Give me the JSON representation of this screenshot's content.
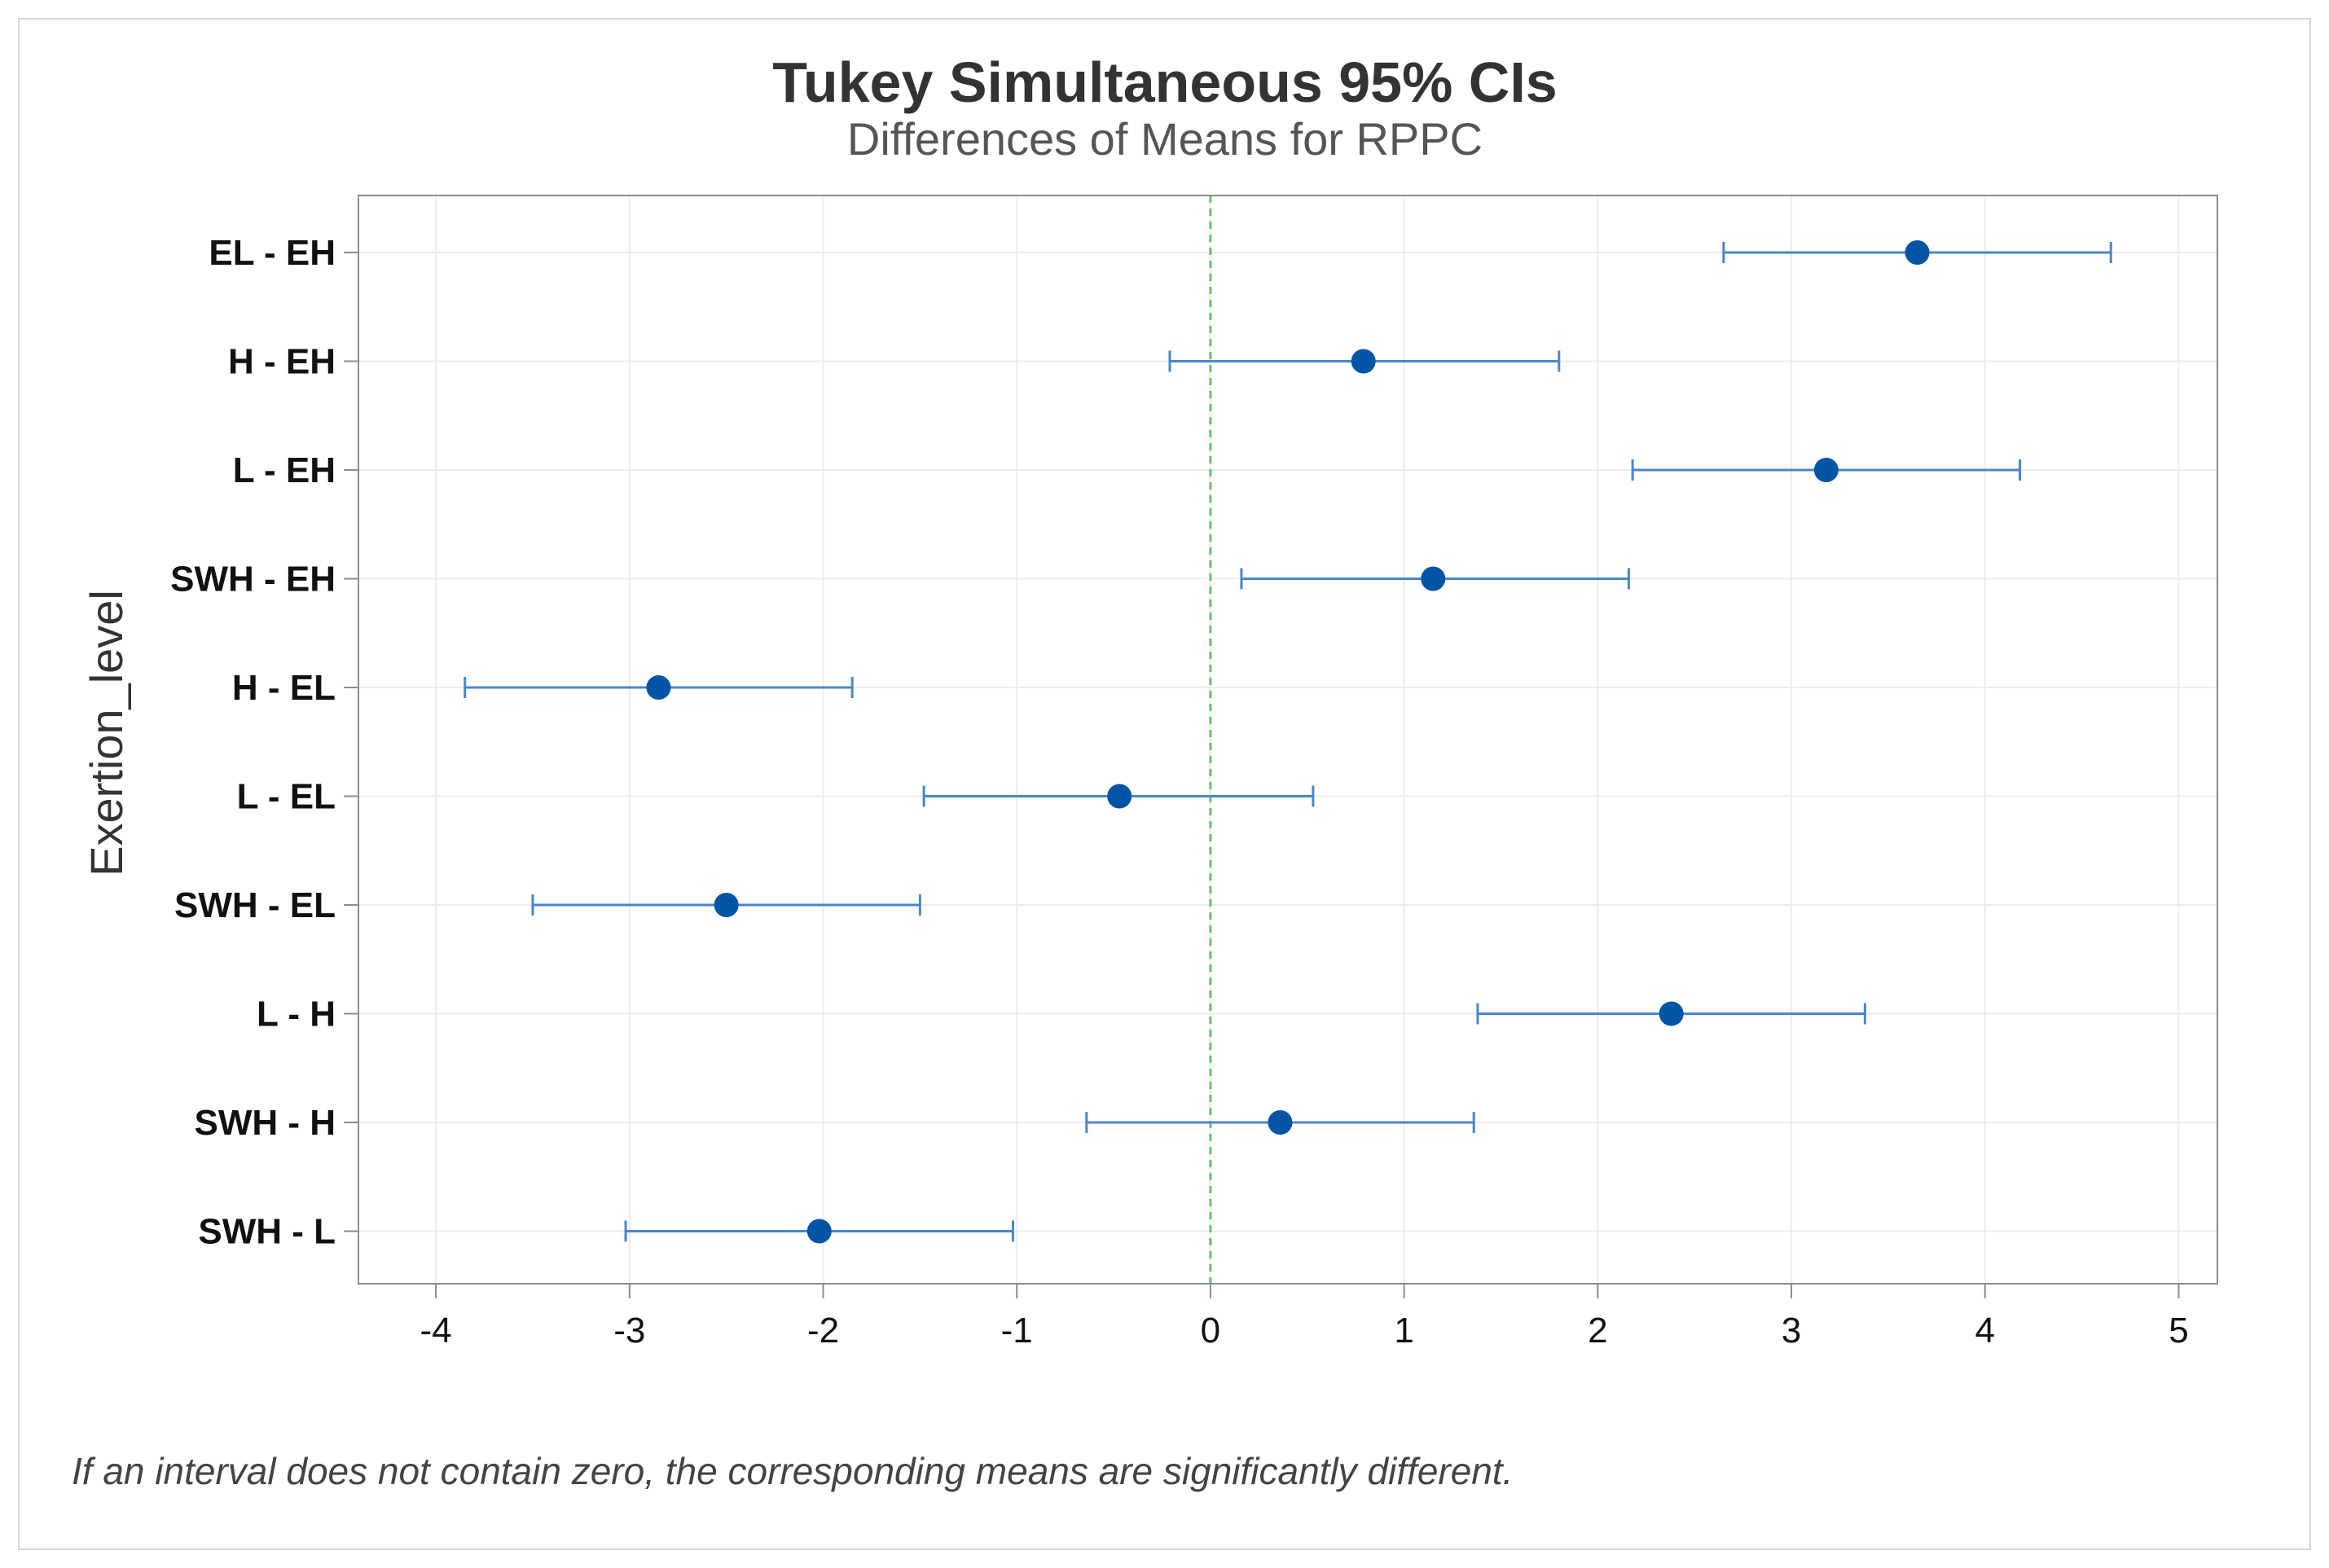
{
  "chart_data": {
    "type": "interval",
    "title": "Tukey Simultaneous 95% CIs",
    "subtitle": "Differences of Means for RPPC",
    "ylabel": "Exertion_level",
    "xlabel": "",
    "xlim": [
      -4.4,
      5.2
    ],
    "xticks": [
      -4,
      -3,
      -2,
      -1,
      0,
      1,
      2,
      3,
      4,
      5
    ],
    "reference_line": 0,
    "grid": true,
    "series": [
      {
        "label": "EL - EH",
        "estimate": 3.65,
        "lower": 2.65,
        "upper": 4.65
      },
      {
        "label": "H - EH",
        "estimate": 0.79,
        "lower": -0.21,
        "upper": 1.8
      },
      {
        "label": "L - EH",
        "estimate": 3.18,
        "lower": 2.18,
        "upper": 4.18
      },
      {
        "label": "SWH - EH",
        "estimate": 1.15,
        "lower": 0.16,
        "upper": 2.16
      },
      {
        "label": "H - EL",
        "estimate": -2.85,
        "lower": -3.85,
        "upper": -1.85
      },
      {
        "label": "L - EL",
        "estimate": -0.47,
        "lower": -1.48,
        "upper": 0.53
      },
      {
        "label": "SWH - EL",
        "estimate": -2.5,
        "lower": -3.5,
        "upper": -1.5
      },
      {
        "label": "L - H",
        "estimate": 2.38,
        "lower": 1.38,
        "upper": 3.38
      },
      {
        "label": "SWH - H",
        "estimate": 0.36,
        "lower": -0.64,
        "upper": 1.36
      },
      {
        "label": "SWH - L",
        "estimate": -2.02,
        "lower": -3.02,
        "upper": -1.02
      }
    ],
    "footnote": "If an interval does not contain zero, the corresponding means are significantly different.",
    "colors": {
      "point": "#0054A6",
      "line": "#4A86C8",
      "reference": "#6DBE6D",
      "grid": "#ececec",
      "axis": "#8c8c8c"
    }
  }
}
